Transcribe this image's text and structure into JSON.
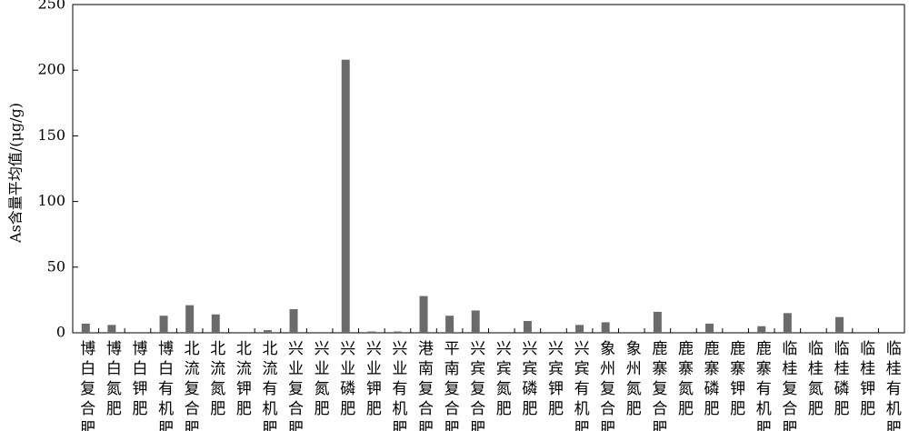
{
  "chart_data": {
    "type": "bar",
    "y_label": "As含量平均值/(μg/g)",
    "categories": [
      "博白复合肥",
      "博白氮肥",
      "博白钾肥",
      "博白有机肥",
      "北流复合肥",
      "北流氮肥",
      "北流钾肥",
      "北流有机肥",
      "兴业复合肥",
      "兴业氮肥",
      "兴业磷肥",
      "兴业钾肥",
      "兴业有机肥",
      "港南复合肥",
      "平南复合肥",
      "兴宾复合肥",
      "兴宾氮肥",
      "兴宾磷肥",
      "兴宾钾肥",
      "兴宾有机肥",
      "象州复合肥",
      "象州氮肥",
      "鹿寨复合肥",
      "鹿寨氮肥",
      "鹿寨磷肥",
      "鹿寨钾肥",
      "鹿寨有机肥",
      "临桂复合肥",
      "临桂氮肥",
      "临桂磷肥",
      "临桂钾肥",
      "临桂有机肥"
    ],
    "values": [
      7,
      6,
      0,
      13,
      21,
      14,
      0,
      2,
      18,
      0,
      208,
      1,
      1,
      28,
      13,
      17,
      0,
      9,
      0,
      6,
      8,
      0,
      16,
      0,
      7,
      0,
      5,
      15,
      0,
      12,
      0,
      0
    ],
    "color": "#6b6b6b",
    "ylim": [
      0,
      250
    ],
    "yticks": [
      0,
      50,
      100,
      150,
      200,
      250
    ]
  }
}
